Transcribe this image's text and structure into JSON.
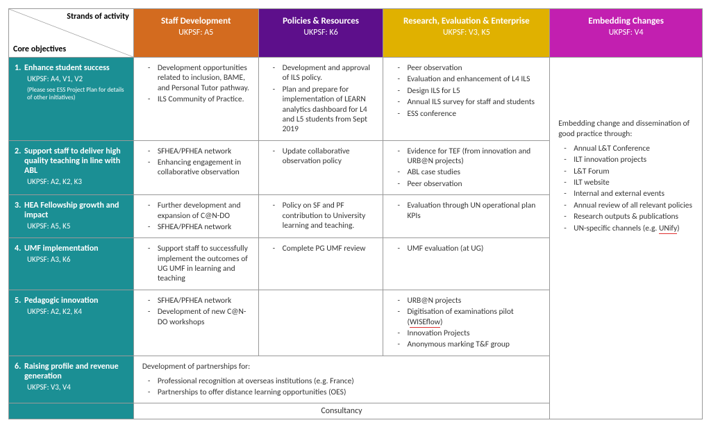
{
  "colors": {
    "staff_dev": "#d36b1f",
    "policies": "#5d0f8b",
    "research": "#e0b100",
    "embedding": "#c21fb0",
    "row_hdr": "#1b8f94"
  },
  "corner": {
    "strands": "Strands of activity",
    "core": "Core objectives"
  },
  "columns": [
    {
      "title": "Staff Development",
      "sub": "UKPSF: A5",
      "colorKey": "staff_dev"
    },
    {
      "title": "Policies & Resources",
      "sub": "UKPSF: K6",
      "colorKey": "policies"
    },
    {
      "title": "Research, Evaluation & Enterprise",
      "sub": "UKPSF: V3, K5",
      "colorKey": "research"
    },
    {
      "title": "Embedding Changes",
      "sub": "UKPSF: V4",
      "colorKey": "embedding"
    }
  ],
  "col_widths": [
    "18%",
    "18%",
    "18%",
    "24%",
    "22%"
  ],
  "rows": [
    {
      "num": "1.",
      "title": "Enhance student success",
      "ukpsf": "UKPSF: A4, V1, V2",
      "note": "(Please see ESS Project Plan for details of other initiatives)",
      "staff": [
        "Development opportunities related to inclusion, BAME, and Personal Tutor pathway.",
        "ILS Community of Practice."
      ],
      "policies": [
        "Development and approval of ILS policy.",
        "Plan and prepare for implementation of LEARN analytics dashboard for L4 and L5 students from Sept 2019"
      ],
      "research": [
        "Peer observation",
        "Evaluation and enhancement of L4 ILS",
        "Design ILS for L5",
        "Annual ILS survey for staff and students",
        "ESS conference"
      ]
    },
    {
      "num": "2.",
      "title": "Support staff to deliver high quality teaching in line with ABL",
      "ukpsf": "UKPSF: A2, K2, K3",
      "staff": [
        "SFHEA/PFHEA network",
        "Enhancing engagement in collaborative observation"
      ],
      "policies": [
        "Update collaborative observation policy"
      ],
      "research": [
        "Evidence for TEF (from innovation and URB@N projects)",
        "ABL case studies",
        "Peer observation"
      ]
    },
    {
      "num": "3.",
      "title": "HEA Fellowship growth and impact",
      "ukpsf": "UKPSF: A5, K5",
      "staff": [
        "Further development and expansion of C@N-DO",
        "SFHEA/PFHEA network"
      ],
      "policies": [
        "Policy on SF and PF contribution to University learning and teaching."
      ],
      "research": [
        "Evaluation through UN operational plan KPIs"
      ]
    },
    {
      "num": "4.",
      "title": "UMF implementation",
      "ukpsf": "UKPSF: A3, K6",
      "staff": [
        "Support staff to successfully implement the outcomes of UG UMF in learning and teaching"
      ],
      "policies": [
        "Complete PG UMF review"
      ],
      "research": [
        "UMF evaluation (at UG)"
      ]
    },
    {
      "num": "5.",
      "title": "Pedagogic innovation",
      "ukpsf": "UKPSF: A2, K2, K4",
      "staff": [
        "SFHEA/PFHEA network",
        "Development of new C@N-DO workshops"
      ],
      "policies": [],
      "research": [
        "URB@N projects",
        "Digitisation of examinations pilot (WISEflow)",
        "Innovation Projects",
        "Anonymous marking T&F group"
      ],
      "research_underline_idx": 1,
      "research_underline_text": "WISEflow"
    },
    {
      "num": "6.",
      "title": "Raising profile and revenue generation",
      "ukpsf": "UKPSF: V3, V4",
      "span_intro": "Development of partnerships for:",
      "span_items": [
        "Professional recognition at overseas institutions (e.g. France)",
        "Partnerships to offer distance learning opportunities (OES)"
      ]
    }
  ],
  "embedding": {
    "intro": "Embedding change and dissemination of good practice through:",
    "items": [
      "Annual L&T Conference",
      "ILT innovation projects",
      "L&T Forum",
      "ILT website",
      "Internal and external events",
      "Annual review of all relevant policies",
      "Research outputs & publications",
      "UN-specific channels (e.g. UNify)"
    ],
    "underline_idx": 7,
    "underline_text": "UNify"
  },
  "consultancy_label": "Consultancy"
}
